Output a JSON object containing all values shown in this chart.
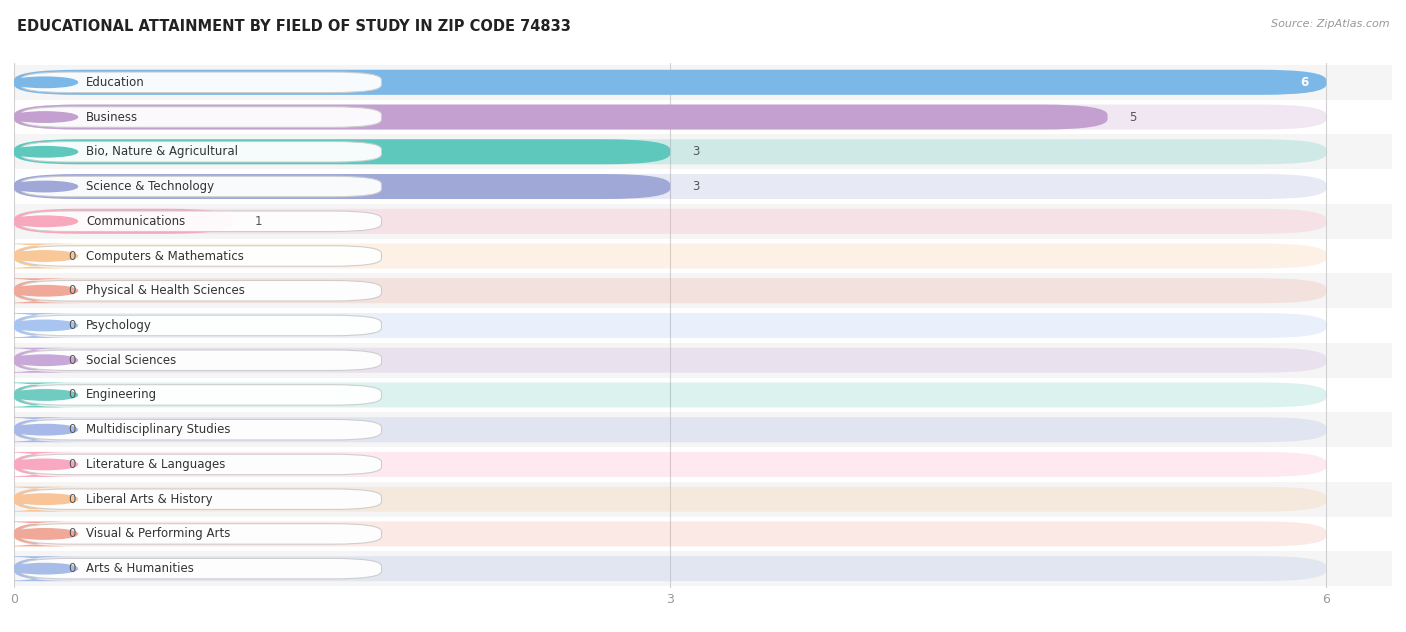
{
  "title": "EDUCATIONAL ATTAINMENT BY FIELD OF STUDY IN ZIP CODE 74833",
  "source": "Source: ZipAtlas.com",
  "categories": [
    "Education",
    "Business",
    "Bio, Nature & Agricultural",
    "Science & Technology",
    "Communications",
    "Computers & Mathematics",
    "Physical & Health Sciences",
    "Psychology",
    "Social Sciences",
    "Engineering",
    "Multidisciplinary Studies",
    "Literature & Languages",
    "Liberal Arts & History",
    "Visual & Performing Arts",
    "Arts & Humanities"
  ],
  "values": [
    6,
    5,
    3,
    3,
    1,
    0,
    0,
    0,
    0,
    0,
    0,
    0,
    0,
    0,
    0
  ],
  "bar_colors": [
    "#7bb8e8",
    "#c4a0d0",
    "#5ec8bc",
    "#a0a8d8",
    "#f8a8bc",
    "#f8c898",
    "#f0a898",
    "#a8c4f0",
    "#c8a8d8",
    "#70ccc0",
    "#a8b8e8",
    "#f8a8c0",
    "#f8c498",
    "#f0a898",
    "#a8bce8"
  ],
  "xlim": [
    0,
    6.3
  ],
  "xticks": [
    0,
    3,
    6
  ],
  "background_color": "#ffffff",
  "row_bg_color": "#f0f0f0",
  "title_fontsize": 10.5,
  "tick_fontsize": 9,
  "label_fontsize": 8.5,
  "value_fontsize": 8.5
}
